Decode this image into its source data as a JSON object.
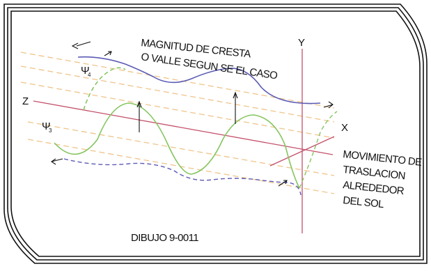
{
  "annotation_crest": [
    "MAGNITUD DE CRESTA",
    "O VALLE SEGUN SE EL CASO"
  ],
  "axis_z": "Z",
  "axis_y": "Y",
  "axis_x": "X",
  "psi4": {
    "symbol": "Ψ",
    "sub": "4"
  },
  "psi3": {
    "symbol": "Ψ",
    "sub": "3"
  },
  "motion_label": [
    "MOVIMIENTO DE",
    "TRASLACION",
    "ALREDEDOR",
    "DEL SOL"
  ],
  "drawing_id": "DIBUJO 9-0011",
  "colors": {
    "frame": "#111111",
    "wave_blue": "#5b5bb5",
    "wave_green": "#86c560",
    "guide_orange": "#f0c48a",
    "axis_red": "#c4506a"
  }
}
